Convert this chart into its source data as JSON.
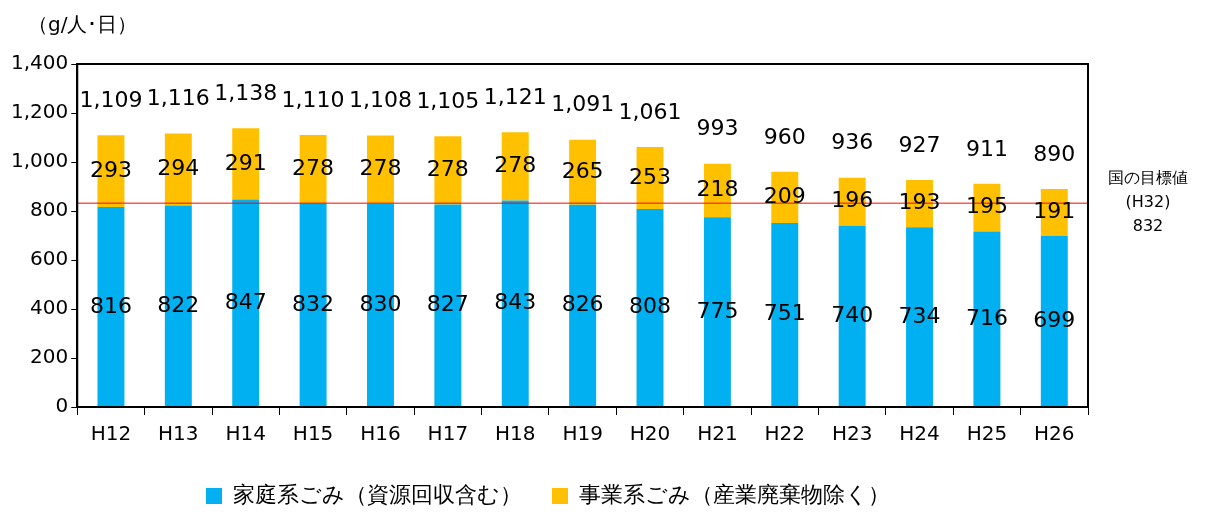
{
  "chart_data": {
    "type": "bar",
    "stacked": true,
    "ylabel": "（g/人･日）",
    "categories": [
      "H12",
      "H13",
      "H14",
      "H15",
      "H16",
      "H17",
      "H18",
      "H19",
      "H20",
      "H21",
      "H22",
      "H23",
      "H24",
      "H25",
      "H26"
    ],
    "series": [
      {
        "name": "家庭系ごみ（資源回収含む）",
        "color": "#00b0f0",
        "values": [
          816,
          822,
          847,
          832,
          830,
          827,
          843,
          826,
          808,
          775,
          751,
          740,
          734,
          716,
          699
        ]
      },
      {
        "name": "事業系ごみ（産業廃棄物除く）",
        "color": "#ffc000",
        "values": [
          293,
          294,
          291,
          278,
          278,
          278,
          278,
          265,
          253,
          218,
          209,
          196,
          193,
          195,
          191
        ]
      }
    ],
    "totals": [
      "1,109",
      "1,116",
      "1,138",
      "1,110",
      "1,108",
      "1,105",
      "1,121",
      "1,091",
      "1,061",
      "993",
      "960",
      "936",
      "927",
      "911",
      "890"
    ],
    "ylim": [
      0,
      1400
    ],
    "yticks": [
      0,
      {
        "value": 200,
        "label": "200"
      },
      {
        "value": 400,
        "label": "400"
      },
      {
        "value": 600,
        "label": "600"
      },
      {
        "value": 800,
        "label": "800"
      },
      {
        "value": 1000,
        "label": "1,000"
      },
      {
        "value": 1200,
        "label": "1,200"
      },
      {
        "value": 1400,
        "label": "1,400"
      }
    ],
    "ref_lines": [
      {
        "axis": "y",
        "value": 832,
        "label": "国の目標値(H32)\n832",
        "color": "#ff0000"
      }
    ],
    "data_labels": true,
    "grid": false,
    "legend": "bottom"
  }
}
